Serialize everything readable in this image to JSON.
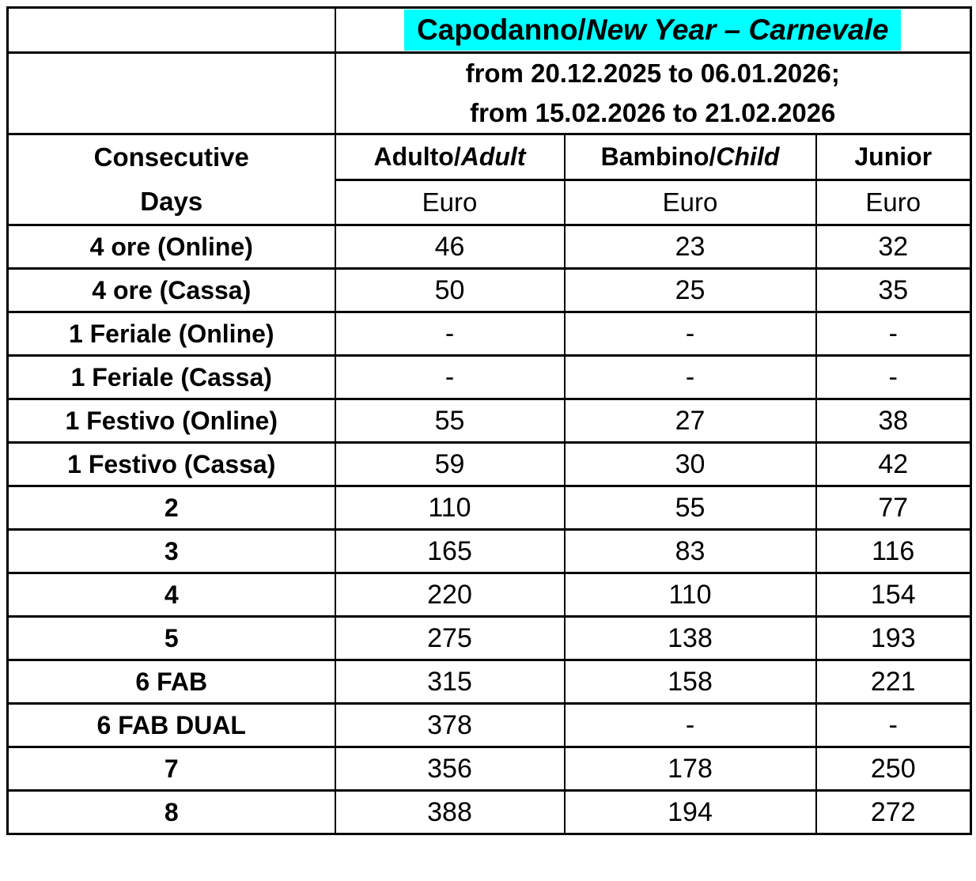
{
  "table": {
    "title": {
      "regular": "Capodanno/",
      "italic": "New Year – Carnevale",
      "highlight_color": "#00ffff"
    },
    "period": {
      "line1": "from 20.12.2025 to 06.01.2026;",
      "line2": "from 15.02.2026 to 21.02.2026"
    },
    "row_header": {
      "line1": "Consecutive",
      "line2": "Days"
    },
    "columns": [
      {
        "regular": "Adulto/",
        "italic": "Adult",
        "unit": "Euro"
      },
      {
        "regular": "Bambino/",
        "italic": "Child",
        "unit": "Euro"
      },
      {
        "regular": "Junior",
        "italic": "",
        "unit": "Euro"
      }
    ],
    "rows": [
      {
        "label": "4 ore (Online)",
        "values": [
          "46",
          "23",
          "32"
        ]
      },
      {
        "label": "4 ore (Cassa)",
        "values": [
          "50",
          "25",
          "35"
        ]
      },
      {
        "label": "1 Feriale (Online)",
        "values": [
          "-",
          "-",
          "-"
        ]
      },
      {
        "label": "1 Feriale (Cassa)",
        "values": [
          "-",
          "-",
          "-"
        ]
      },
      {
        "label": "1 Festivo (Online)",
        "values": [
          "55",
          "27",
          "38"
        ]
      },
      {
        "label": "1 Festivo (Cassa)",
        "values": [
          "59",
          "30",
          "42"
        ]
      },
      {
        "label": "2",
        "values": [
          "110",
          "55",
          "77"
        ]
      },
      {
        "label": "3",
        "values": [
          "165",
          "83",
          "116"
        ]
      },
      {
        "label": "4",
        "values": [
          "220",
          "110",
          "154"
        ]
      },
      {
        "label": "5",
        "values": [
          "275",
          "138",
          "193"
        ]
      },
      {
        "label": "6 FAB",
        "values": [
          "315",
          "158",
          "221"
        ]
      },
      {
        "label": "6 FAB DUAL",
        "values": [
          "378",
          "-",
          "-"
        ]
      },
      {
        "label": "7",
        "values": [
          "356",
          "178",
          "250"
        ]
      },
      {
        "label": "8",
        "values": [
          "388",
          "194",
          "272"
        ]
      }
    ],
    "colors": {
      "border": "#000000",
      "text": "#000000",
      "background": "#ffffff",
      "title_highlight": "#00ffff"
    }
  }
}
